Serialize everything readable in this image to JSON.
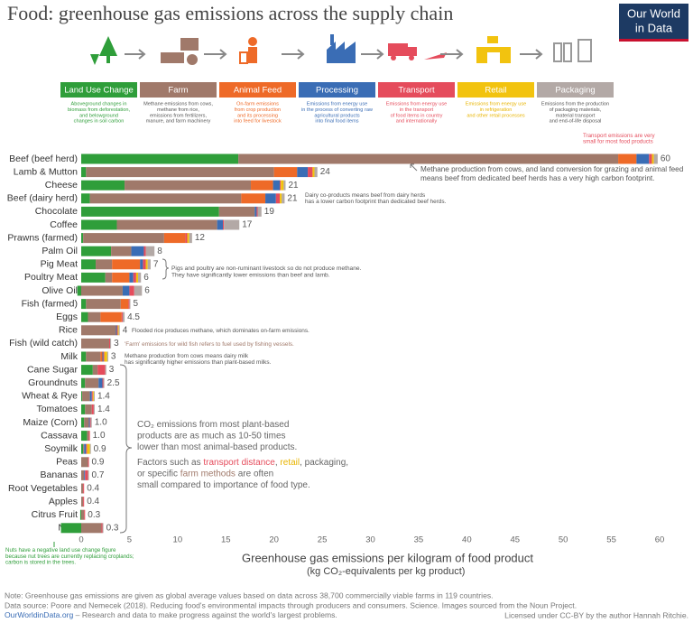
{
  "title": "Food: greenhouse gas emissions across the supply chain",
  "logo": [
    "Our World",
    "in Data"
  ],
  "chart_data": {
    "type": "stacked-bar-horizontal",
    "categories": [
      "Beef (beef herd)",
      "Lamb & Mutton",
      "Cheese",
      "Beef (dairy herd)",
      "Chocolate",
      "Coffee",
      "Prawns (farmed)",
      "Palm Oil",
      "Pig Meat",
      "Poultry Meat",
      "Olive Oil",
      "Fish (farmed)",
      "Eggs",
      "Rice",
      "Fish (wild catch)",
      "Milk",
      "Cane Sugar",
      "Groundnuts",
      "Wheat & Rye",
      "Tomatoes",
      "Maize (Corn)",
      "Cassava",
      "Soymilk",
      "Peas",
      "Bananas",
      "Root Vegetables",
      "Apples",
      "Citrus Fruit",
      "Nuts"
    ],
    "series": [
      {
        "name": "Land Use Change",
        "color": "#2f9e3a",
        "note_color": "#2f9e3a",
        "note": [
          "Aboveground changes in",
          "biomass from deforestation,",
          "and belowground",
          "changes in soil carbon"
        ],
        "values": [
          16.3,
          0.5,
          4.5,
          0.9,
          14.3,
          3.7,
          0.2,
          3.1,
          1.5,
          2.5,
          -0.4,
          0.5,
          0.7,
          0,
          0,
          0.5,
          1.2,
          0.4,
          0.1,
          0.4,
          0.3,
          0.6,
          0.2,
          0,
          0,
          0,
          0,
          -0.1,
          -2.1
        ]
      },
      {
        "name": "Farm",
        "color": "#a0796a",
        "note_color": "#555555",
        "note": [
          "Methane emissions from cows,",
          "methane from rice,",
          "emissions from fertilizers,",
          "manure, and farm machinery"
        ],
        "values": [
          39.4,
          19.5,
          13.1,
          15.7,
          3.7,
          10.4,
          8.4,
          2.1,
          1.7,
          0.7,
          4.3,
          3.6,
          1.3,
          3.6,
          2.9,
          1.5,
          0.5,
          1.4,
          0.8,
          0.7,
          0.5,
          0.2,
          0.1,
          0.7,
          0.3,
          0.2,
          0.2,
          0.3,
          2.1
        ]
      },
      {
        "name": "Animal Feed",
        "color": "#ee6a28",
        "note_color": "#ee6a28",
        "note": [
          "On-farm emissions",
          "from crop production",
          "and its processing",
          "into feed for livestock"
        ],
        "values": [
          1.9,
          2.4,
          2.3,
          2.5,
          0,
          0,
          2.2,
          0,
          2.9,
          1.8,
          0,
          0.8,
          2.2,
          0,
          0,
          0.2,
          0,
          0,
          0,
          0,
          0,
          0,
          0,
          0,
          0,
          0,
          0,
          0,
          0
        ]
      },
      {
        "name": "Processing",
        "color": "#3a6db5",
        "note_color": "#3a6db5",
        "note": [
          "Emissions from energy use",
          "in the process of converting raw",
          "agricultural products",
          "into final food items"
        ],
        "values": [
          1.3,
          1.1,
          0.7,
          1.1,
          0.2,
          0.6,
          0,
          1.3,
          0.3,
          0.4,
          0.7,
          0,
          0,
          0.1,
          0,
          0.1,
          0,
          0.4,
          0.2,
          0,
          0.1,
          0,
          0.2,
          0,
          0.1,
          0,
          0,
          0,
          0
        ]
      },
      {
        "name": "Transport",
        "color": "#e54c5c",
        "note_color": "#e54c5c",
        "note": [
          "Emissions from energy use",
          "in the transport",
          "of food items in country",
          "and internationally"
        ],
        "values": [
          0.3,
          0.5,
          0.1,
          0.4,
          0.1,
          0.1,
          0.2,
          0.2,
          0.3,
          0.3,
          0.5,
          0.1,
          0.1,
          0.1,
          0.1,
          0.1,
          0.8,
          0.1,
          0.1,
          0.2,
          0.1,
          0.1,
          0.1,
          0.1,
          0.3,
          0.1,
          0.1,
          0.1,
          0.1
        ]
      },
      {
        "name": "Retail",
        "color": "#f2c30f",
        "note_color": "#e8b400",
        "note": [
          "Emissions from energy use",
          "in refrigeration",
          "and other retail processes"
        ],
        "values": [
          0.2,
          0.2,
          0.3,
          0.2,
          0,
          0,
          0.2,
          0,
          0.2,
          0.2,
          0,
          0,
          0,
          0.1,
          0,
          0.3,
          0,
          0,
          0.1,
          0,
          0,
          0,
          0.3,
          0,
          0,
          0,
          0,
          0,
          0
        ]
      },
      {
        "name": "Packaging",
        "color": "#b3a9a6",
        "note_color": "#555555",
        "note": [
          "Emissions from the production",
          "of packaging materials,",
          "material transport",
          "and end-of-life disposal"
        ],
        "values": [
          0.4,
          0.3,
          0.2,
          0.3,
          0.4,
          1.6,
          0.3,
          0.9,
          0.3,
          0.3,
          0.8,
          0.1,
          0.2,
          0.1,
          0.1,
          0.1,
          0.1,
          0.1,
          0.1,
          0.1,
          0.1,
          0,
          0.1,
          0,
          0.1,
          0,
          0,
          0,
          0.1
        ]
      }
    ],
    "totals": [
      60,
      24,
      21,
      21,
      19,
      17,
      12,
      8,
      7,
      6,
      6,
      5,
      4.5,
      4,
      3,
      3,
      3,
      2.5,
      1.4,
      1.4,
      {
        "value": 1,
        "label": "1.0"
      },
      {
        "value": 1,
        "label": "1.0"
      },
      0.9,
      0.9,
      0.7,
      0.4,
      0.4,
      0.3,
      0.3
    ],
    "xlim": [
      -2.5,
      60
    ],
    "xticks": [
      0,
      5,
      10,
      15,
      20,
      25,
      30,
      35,
      40,
      45,
      50,
      55,
      60
    ],
    "grid": false,
    "xlabel": "Greenhouse gas emissions per kilogram of food product",
    "xlabel_sub": "(kg CO₂-equivalents per kg product)",
    "annotations": [
      {
        "color": "#e54c5c",
        "lines": [
          [
            "Transport emissions are very"
          ],
          [
            "small for most food products"
          ]
        ]
      },
      {
        "color": "#555555",
        "lines": [
          [
            "Methane production from cows, and land conversion for grazing and animal feed"
          ],
          [
            "means beef from dedicated beef herds has a very high carbon footprint."
          ]
        ]
      },
      {
        "color": "#555555",
        "lines": [
          [
            "Dairy co-products means beef from dairy herds"
          ],
          [
            "has a lower carbon footprint than dedicated beef herds."
          ]
        ]
      },
      {
        "color": "#555555",
        "lines": [
          [
            "Pigs and poultry are non-ruminant livestock so do not produce methane."
          ],
          [
            "They have significantly lower emissions than beef and lamb."
          ]
        ]
      },
      {
        "color": "#555555",
        "lines": [
          [
            "Flooded rice produces methane, which dominates on-farm emissions."
          ]
        ]
      },
      {
        "color": "#a0796a",
        "lines": [
          [
            "'Farm' emissions for wild fish refers to fuel used by fishing vessels."
          ]
        ]
      },
      {
        "color": "#555555",
        "lines": [
          [
            "Methane production from cows means dairy milk"
          ],
          [
            "has significantly higher emissions than plant-based milks."
          ]
        ]
      },
      {
        "color": "#666666",
        "lines": [
          [
            "CO₂ emissions from most plant-based"
          ],
          [
            "products are as much as 10-50 times"
          ],
          [
            "lower than most animal-based products."
          ]
        ]
      },
      {
        "color": "#666666",
        "lines": [
          [
            "Factors such as ",
            {
              "text": "transport distance",
              "color": "#e54c5c"
            },
            ", ",
            {
              "text": "retail",
              "color": "#e8b400"
            },
            ", packaging,"
          ],
          [
            "or specific ",
            {
              "text": "farm methods",
              "color": "#a0796a"
            },
            " are often"
          ],
          [
            "small compared to importance of food type."
          ]
        ]
      },
      {
        "color": "#2f9e3a",
        "lines": [
          [
            "Nuts have a negative land use change figure"
          ],
          [
            "because nut trees are currently replacing croplands;"
          ],
          [
            "carbon is stored in the trees."
          ]
        ]
      }
    ]
  },
  "footer": {
    "note": "Note: Greenhouse gas emissions are given as global average values based on data across 38,700 commercially viable farms in 119 countries.",
    "source": "Data source: Poore and Nemecek (2018). Reducing food's environmental impacts through producers and consumers. Science. Images sourced from the Noun Project.",
    "site": "OurWorldinData.org",
    "tagline": " – Research and data to make progress against the world's largest problems.",
    "license": "Licensed under CC-BY by the author Hannah Ritchie."
  }
}
